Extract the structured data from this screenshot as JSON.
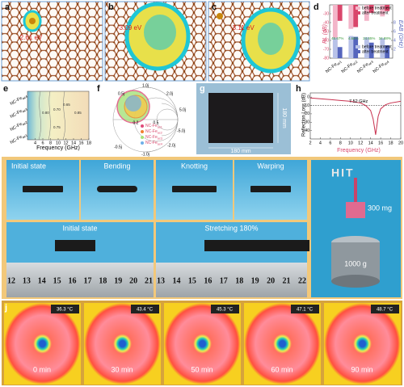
{
  "panels": {
    "a": {
      "label": "a",
      "energy": "-2.61 eV"
    },
    "b": {
      "label": "b",
      "energy": "-3.09 eV"
    },
    "c": {
      "label": "c",
      "energy": "-3.11 eV"
    },
    "d": {
      "label": "d",
      "y_label": "RL (dB)",
      "y2_label": "EAB (GHz)",
      "categories": [
        {
          "base": "NC-Fe",
          "sub": "ac1"
        },
        {
          "base": "NC-Fe",
          "sub": "ac2"
        },
        {
          "base": "NC-Fe",
          "sub": "ac3"
        },
        {
          "base": "NC-Fe",
          "sub": "ac4"
        }
      ],
      "ylim": [
        -20,
        -80
      ],
      "yticks": [
        -30,
        -40,
        -50,
        -60,
        -70,
        -80
      ],
      "y2lim": [
        0,
        12
      ],
      "y2ticks": [
        2,
        4,
        6,
        8
      ],
      "series": [
        {
          "name": "before treatment",
          "color": "#f3b5c9",
          "values": [
            -70,
            -47,
            -38,
            -33
          ]
        },
        {
          "name": "after treatment",
          "color": "#d9466b",
          "values": [
            -38,
            -45,
            -29,
            -27
          ]
        },
        {
          "name": "before treatment",
          "color": "#b8c2e8",
          "axis": "y2",
          "values": [
            4.6,
            5.0,
            4.7,
            4.5
          ]
        },
        {
          "name": "after treatment",
          "color": "#5565bd",
          "axis": "y2",
          "values": [
            2.5,
            4.8,
            3.5,
            2.9
          ]
        }
      ],
      "annotations": [
        "45.67%",
        "4.64%",
        "24.65%",
        "34.88%"
      ]
    },
    "e": {
      "label": "e",
      "x_label": "Frequency (GHz)",
      "categories": [
        {
          "base": "NC-Fe",
          "sub": "ac4"
        },
        {
          "base": "NC-Fe",
          "sub": "ac3"
        },
        {
          "base": "NC-Fe",
          "sub": "ac2"
        },
        {
          "base": "NC-Fe",
          "sub": "ac1"
        }
      ],
      "xlim": [
        2,
        18
      ],
      "xticks": [
        4,
        6,
        8,
        10,
        12,
        14,
        16,
        18
      ],
      "contours": [
        "0.65",
        "0.80",
        "0.70",
        "0.75",
        "0.85"
      ]
    },
    "f": {
      "label": "f",
      "ticks": [
        "1.0j",
        "0.5j",
        "2.0j",
        "5.0j",
        "0.2",
        "0.5",
        "-0.5j",
        "-5.0j",
        "-2.0j",
        "-1.0j"
      ],
      "legend": [
        {
          "base": "NC-Fe",
          "sub": "ac1"
        },
        {
          "base": "NC-Fe",
          "sub": "ac2"
        },
        {
          "base": "NC-Fe",
          "sub": "ac3"
        },
        {
          "base": "NC-Fe",
          "sub": "ac4"
        }
      ]
    },
    "g": {
      "label": "g",
      "width": "180 mm",
      "height": "180 mm"
    },
    "h": {
      "label": "h",
      "x_label": "Frequency (GHz)",
      "y_label": "Reflection Loss (dB)",
      "annotation": "7.52 GHz",
      "color": "#c8304e",
      "xlim": [
        2,
        20
      ],
      "xticks": [
        2,
        4,
        6,
        8,
        10,
        12,
        14,
        16,
        18,
        20
      ],
      "ylim": [
        -50,
        5
      ],
      "yticks": [
        0,
        -10,
        -20,
        -30,
        -40
      ],
      "x": [
        2,
        4,
        6,
        8,
        10,
        12,
        13,
        14,
        14.5,
        15,
        15.5,
        16,
        17,
        18,
        20
      ],
      "values": [
        -1,
        -2,
        -3,
        -4,
        -5,
        -7,
        -10,
        -16,
        -26,
        -45,
        -23,
        -14,
        -9,
        -7,
        -5
      ]
    },
    "i": {
      "label": "i",
      "tiles": [
        "Initial state",
        "Bending",
        "Knotting",
        "Warping"
      ],
      "ruler_left": "Initial state",
      "ruler_right": "Stretching 180%",
      "ruler_nums_left": [
        "12",
        "13",
        "14",
        "15",
        "16",
        "17",
        "18",
        "19",
        "20",
        "21"
      ],
      "ruler_nums_right": [
        "13",
        "14",
        "15",
        "16",
        "17",
        "18",
        "19",
        "20",
        "21",
        "22"
      ],
      "logo": "HIT",
      "mass_small": "300 mg",
      "mass_big": "1000 g"
    },
    "j": {
      "label": "j",
      "temps": [
        "36.3 °C",
        "43.4 °C",
        "45.3 °C",
        "47.1 °C",
        "48.7 °C"
      ],
      "times": [
        "0 min",
        "30 min",
        "50 min",
        "60 min",
        "90 min"
      ]
    }
  }
}
